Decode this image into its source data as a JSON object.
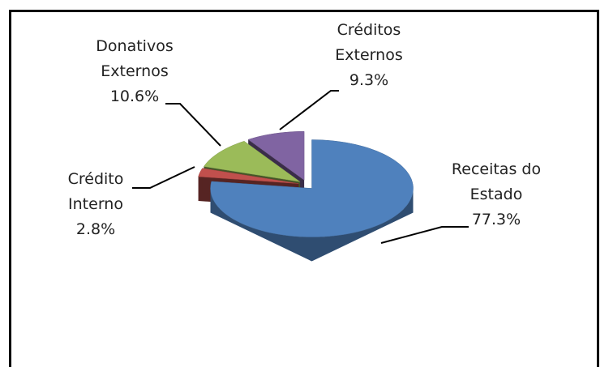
{
  "chart_data": {
    "type": "pie",
    "categories": [
      "Receitas do Estado",
      "Crédito Interno",
      "Donativos Externos",
      "Créditos Externos"
    ],
    "values": [
      77.3,
      2.8,
      10.6,
      9.3
    ],
    "value_labels": [
      "77.3%",
      "2.8%",
      "10.6%",
      "9.3%"
    ],
    "colors": [
      "#4f81bd",
      "#c0504d",
      "#9bbb59",
      "#8064a2"
    ]
  }
}
